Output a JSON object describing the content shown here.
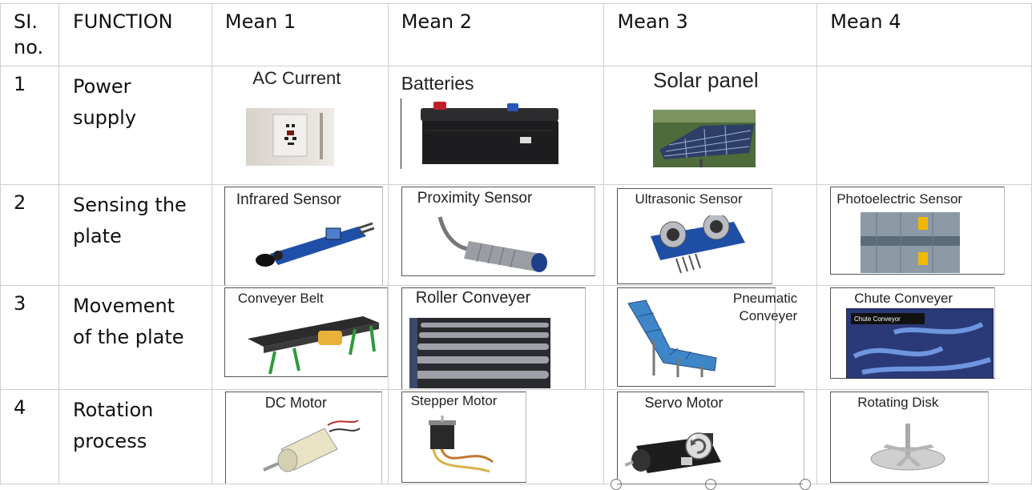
{
  "table": {
    "headers": {
      "sl_no": "SI.",
      "sl_no_2": "no.",
      "function": "FUNCTION",
      "mean1": "Mean 1",
      "mean2": "Mean 2",
      "mean3": "Mean 3",
      "mean4": "Mean 4"
    },
    "rows": [
      {
        "no": "1",
        "function_line1": "Power",
        "function_line2": "supply",
        "mean1": "AC Current",
        "mean2": "Batteries",
        "mean3": "Solar panel",
        "mean4": ""
      },
      {
        "no": "2",
        "function_line1": "Sensing the",
        "function_line2": "plate",
        "mean1": "Infrared Sensor",
        "mean2": "Proximity Sensor",
        "mean3": "Ultrasonic Sensor",
        "mean4": "Photoelectric Sensor"
      },
      {
        "no": "3",
        "function_line1": "Movement",
        "function_line2": "of the plate",
        "mean1": "Conveyer Belt",
        "mean2": "Roller Conveyer",
        "mean3_line1": "Pneumatic",
        "mean3_line2": "Conveyer",
        "mean4": "Chute Conveyer",
        "mean4_inner": "Chute Conveyor"
      },
      {
        "no": "4",
        "function_line1": "Rotation",
        "function_line2": "process",
        "mean1": "DC Motor",
        "mean2": "Stepper Motor",
        "mean3": "Servo Motor",
        "mean4": "Rotating Disk"
      }
    ]
  },
  "icons": {
    "r1m1": "wall-socket-image",
    "r1m2": "car-battery-image",
    "r1m3": "solar-panel-image",
    "r2m1": "infrared-sensor-module-image",
    "r2m2": "proximity-sensor-image",
    "r2m3": "ultrasonic-sensor-image",
    "r2m4": "photoelectric-sensor-image",
    "r3m1": "conveyor-belt-image",
    "r3m2": "roller-conveyor-image",
    "r3m3": "pneumatic-conveyor-image",
    "r3m4": "chute-conveyor-image",
    "r4m1": "dc-motor-image",
    "r4m2": "stepper-motor-image",
    "r4m3": "servo-motor-image",
    "r4m4": "rotating-disk-image"
  }
}
